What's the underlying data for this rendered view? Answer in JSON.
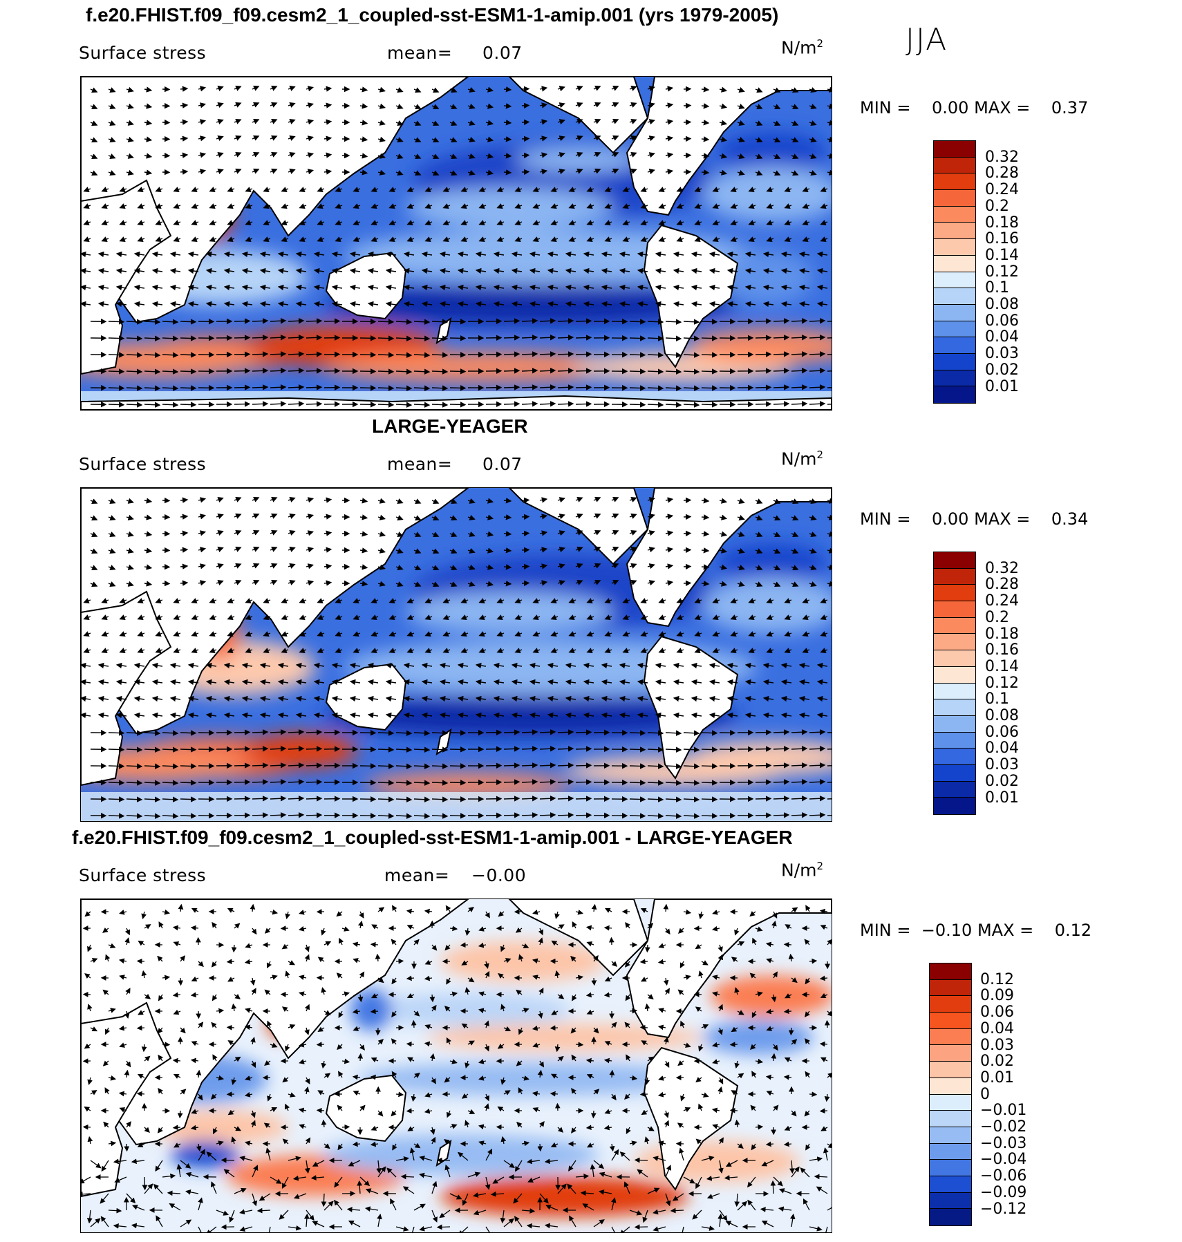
{
  "season": "JJA",
  "panels": [
    {
      "title": "f.e20.FHIST.f09_f09.cesm2_1_coupled-sst-ESM1-1-amip.001 (yrs 1979-2005)",
      "variable": "Surface stress",
      "mean_label": "mean=",
      "mean_value": "0.07",
      "units": "N/m",
      "units_exp": "2",
      "min_label": "MIN =",
      "min_value": "0.00",
      "max_label": "MAX =",
      "max_value": "0.37",
      "levels": [
        "0.32",
        "0.28",
        "0.24",
        "0.2",
        "0.18",
        "0.16",
        "0.14",
        "0.12",
        "0.1",
        "0.08",
        "0.06",
        "0.04",
        "0.03",
        "0.02",
        "0.01"
      ],
      "colors": [
        "#8b0000",
        "#c0250a",
        "#e23d0e",
        "#f5673a",
        "#fb8a5f",
        "#fcaa85",
        "#fdc9ad",
        "#fde6d3",
        "#dceefb",
        "#b6d4f7",
        "#8cb6f2",
        "#5e92ea",
        "#3368e0",
        "#1444cc",
        "#0a2aa8",
        "#05168a"
      ]
    },
    {
      "title": "LARGE-YEAGER",
      "variable": "Surface stress",
      "mean_label": "mean=",
      "mean_value": "0.07",
      "units": "N/m",
      "units_exp": "2",
      "min_label": "MIN =",
      "min_value": "0.00",
      "max_label": "MAX =",
      "max_value": "0.34",
      "levels": [
        "0.32",
        "0.28",
        "0.24",
        "0.2",
        "0.18",
        "0.16",
        "0.14",
        "0.12",
        "0.1",
        "0.08",
        "0.06",
        "0.04",
        "0.03",
        "0.02",
        "0.01"
      ],
      "colors": [
        "#8b0000",
        "#c0250a",
        "#e23d0e",
        "#f5673a",
        "#fb8a5f",
        "#fcaa85",
        "#fdc9ad",
        "#fde6d3",
        "#dceefb",
        "#b6d4f7",
        "#8cb6f2",
        "#5e92ea",
        "#3368e0",
        "#1444cc",
        "#0a2aa8",
        "#05168a"
      ]
    },
    {
      "title": "f.e20.FHIST.f09_f09.cesm2_1_coupled-sst-ESM1-1-amip.001 - LARGE-YEAGER",
      "variable": "Surface stress",
      "mean_label": "mean=",
      "mean_value": "−0.00",
      "units": "N/m",
      "units_exp": "2",
      "min_label": "MIN =",
      "min_value": "−0.10",
      "max_label": "MAX =",
      "max_value": "0.12",
      "levels": [
        "0.12",
        "0.09",
        "0.06",
        "0.04",
        "0.03",
        "0.02",
        "0.01",
        "0",
        "−0.01",
        "−0.02",
        "−0.03",
        "−0.04",
        "−0.06",
        "−0.09",
        "−0.12"
      ],
      "colors": [
        "#8b0000",
        "#c0250a",
        "#e23d0e",
        "#f7551f",
        "#fb7e52",
        "#fca382",
        "#fdc5a8",
        "#fde6d3",
        "#dceefb",
        "#bcd6f8",
        "#97bcf3",
        "#6e9cec",
        "#4277e3",
        "#1d4fd2",
        "#0c2fab",
        "#061a86"
      ]
    }
  ]
}
